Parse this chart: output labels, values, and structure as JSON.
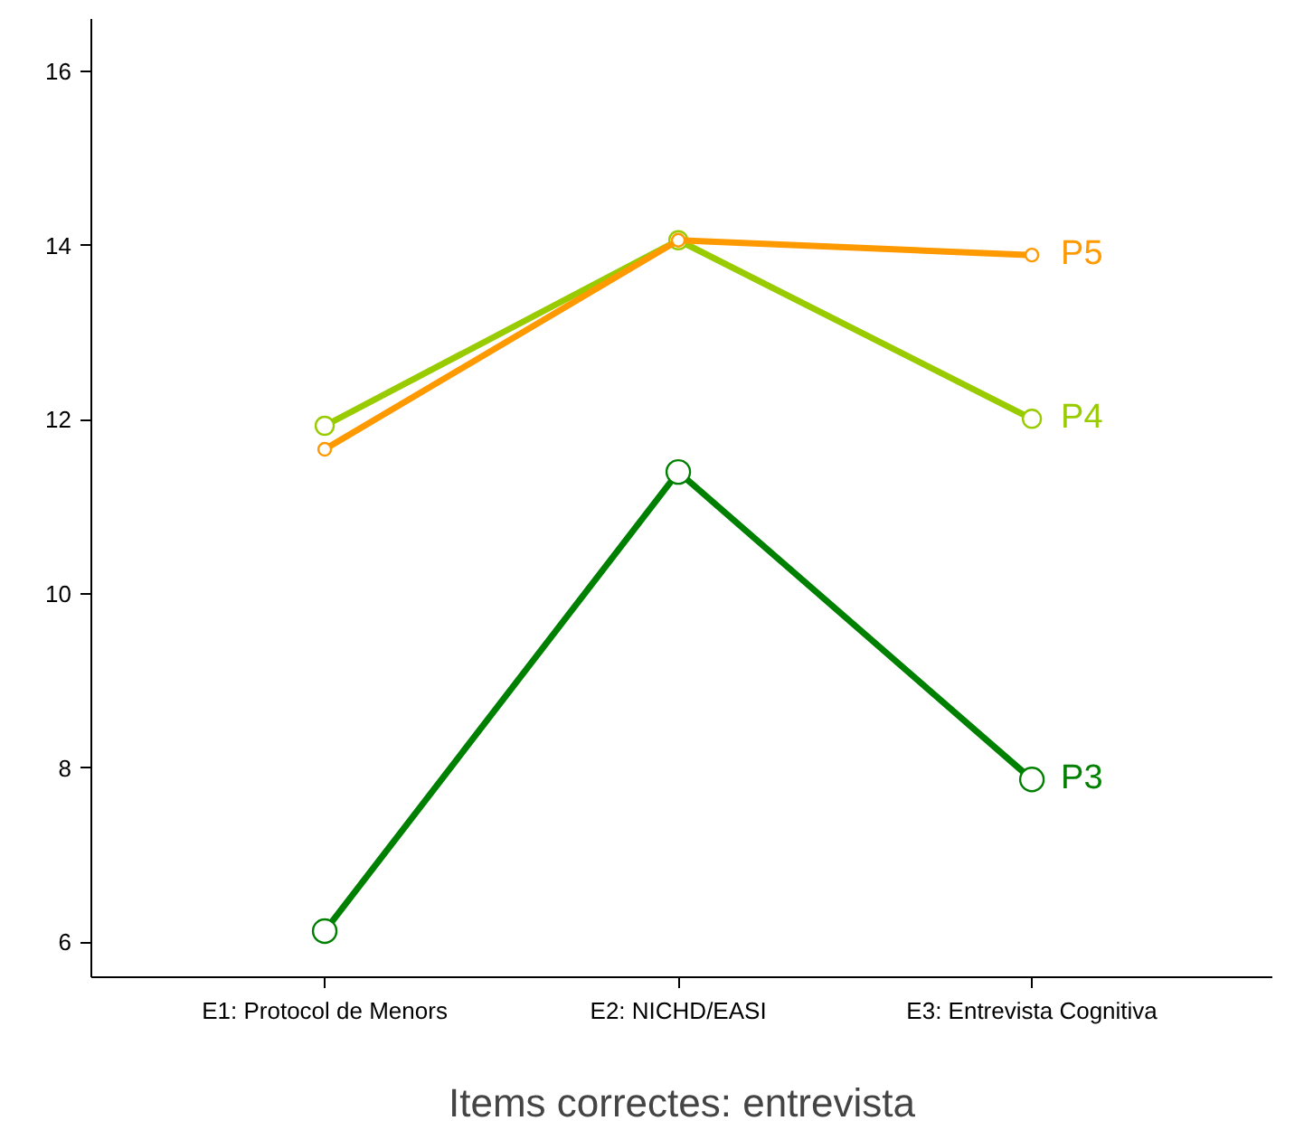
{
  "chart_data": {
    "type": "line",
    "xlabel": "Items correctes: entrevista",
    "categories": [
      "E1: Protocol de Menors",
      "E2: NICHD/EASI",
      "E3: Entrevista Cognitiva"
    ],
    "series": [
      {
        "name": "P3",
        "color": "#008000",
        "values": [
          6.13,
          11.4,
          7.87
        ]
      },
      {
        "name": "P4",
        "color": "#99cc00",
        "values": [
          11.93,
          14.06,
          12.01
        ]
      },
      {
        "name": "P5",
        "color": "#ff9900",
        "values": [
          11.66,
          14.06,
          13.89
        ]
      }
    ],
    "ylim": [
      5.6,
      16.6
    ],
    "yticks": [
      6,
      8,
      10,
      12,
      14,
      16
    ],
    "grid": false,
    "legend": false,
    "marker": "circle",
    "line_style": "solid"
  }
}
